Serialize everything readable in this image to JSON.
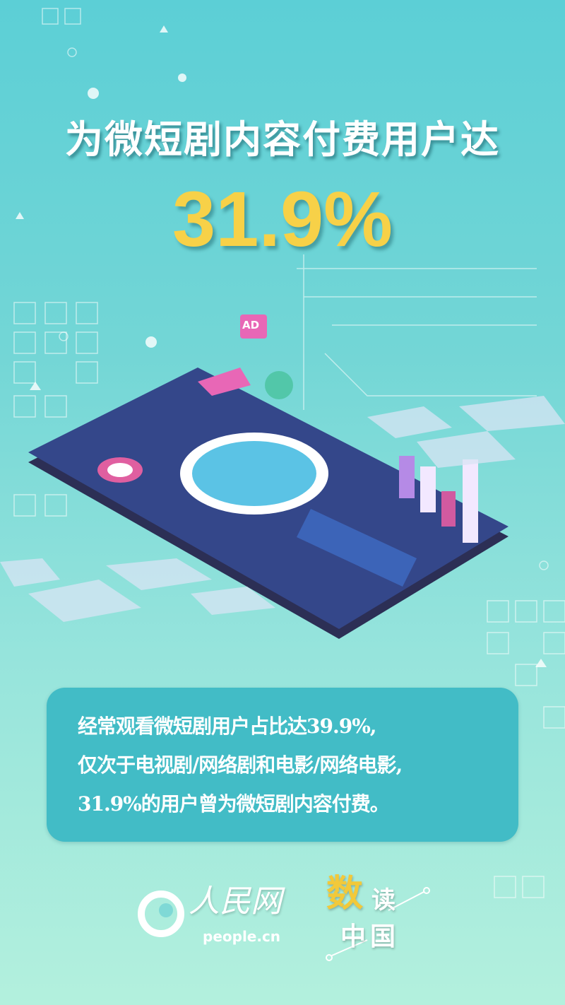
{
  "headline": {
    "title": "为微短剧内容付费用户达",
    "figure": "31.9%"
  },
  "illustration": {
    "ad_badge": "AD"
  },
  "summary": {
    "lines": [
      "经常观看微短剧用户占比达39.9%,",
      "仅次于电视剧/网络剧和电影/网络电影,",
      "31.9%的用户曾为微短剧内容付费。"
    ]
  },
  "footer": {
    "logo_people": {
      "cn": "人民网",
      "en": "people.cn"
    },
    "logo_shudu": {
      "shu": "数",
      "du": "读",
      "zhongguo": "中国"
    }
  },
  "colors": {
    "accent_yellow": "#f7d148",
    "box_teal": "#42bcc6",
    "phone_navy": "#2f3f7e"
  }
}
